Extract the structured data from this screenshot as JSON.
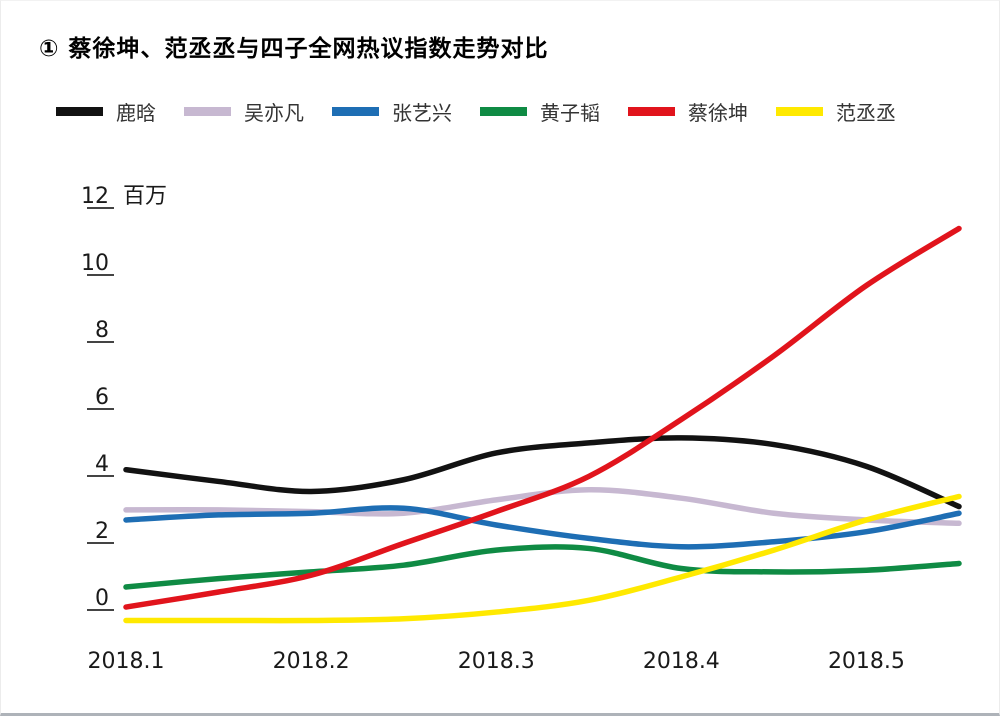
{
  "chart_data": {
    "type": "line",
    "title": "① 蔡徐坤、范丞丞与四子全网热议指数走势对比",
    "unit_label": "百万",
    "grid": false,
    "legend_position": "top",
    "x": [
      2018.1,
      2018.15,
      2018.2,
      2018.25,
      2018.3,
      2018.35,
      2018.4,
      2018.45,
      2018.5,
      2018.55
    ],
    "x_tick_labels": [
      "2018.1",
      "2018.2",
      "2018.3",
      "2018.4",
      "2018.5"
    ],
    "y_ticks": [
      12,
      10,
      8,
      6,
      4,
      2,
      0
    ],
    "ylim": [
      -1,
      12.5
    ],
    "series": [
      {
        "name": "鹿晗",
        "color": "#121212",
        "values": [
          3.8,
          3.45,
          3.15,
          3.5,
          4.3,
          4.6,
          4.75,
          4.55,
          3.9,
          2.7
        ]
      },
      {
        "name": "吴亦凡",
        "color": "#c7b8d1",
        "values": [
          2.6,
          2.6,
          2.55,
          2.5,
          2.9,
          3.2,
          2.95,
          2.5,
          2.3,
          2.2
        ]
      },
      {
        "name": "张艺兴",
        "color": "#1e6eb4",
        "values": [
          2.3,
          2.45,
          2.5,
          2.65,
          2.15,
          1.75,
          1.5,
          1.65,
          1.95,
          2.5
        ]
      },
      {
        "name": "黄子韬",
        "color": "#0f8b44",
        "values": [
          0.3,
          0.55,
          0.75,
          0.95,
          1.4,
          1.45,
          0.85,
          0.75,
          0.8,
          1.0
        ]
      },
      {
        "name": "蔡徐坤",
        "color": "#e1141c",
        "values": [
          -0.3,
          0.15,
          0.65,
          1.6,
          2.55,
          3.6,
          5.3,
          7.2,
          9.3,
          11.0
        ]
      },
      {
        "name": "范丞丞",
        "color": "#ffe900",
        "values": [
          -0.7,
          -0.7,
          -0.7,
          -0.65,
          -0.45,
          -0.1,
          0.6,
          1.4,
          2.3,
          3.0
        ]
      }
    ]
  }
}
